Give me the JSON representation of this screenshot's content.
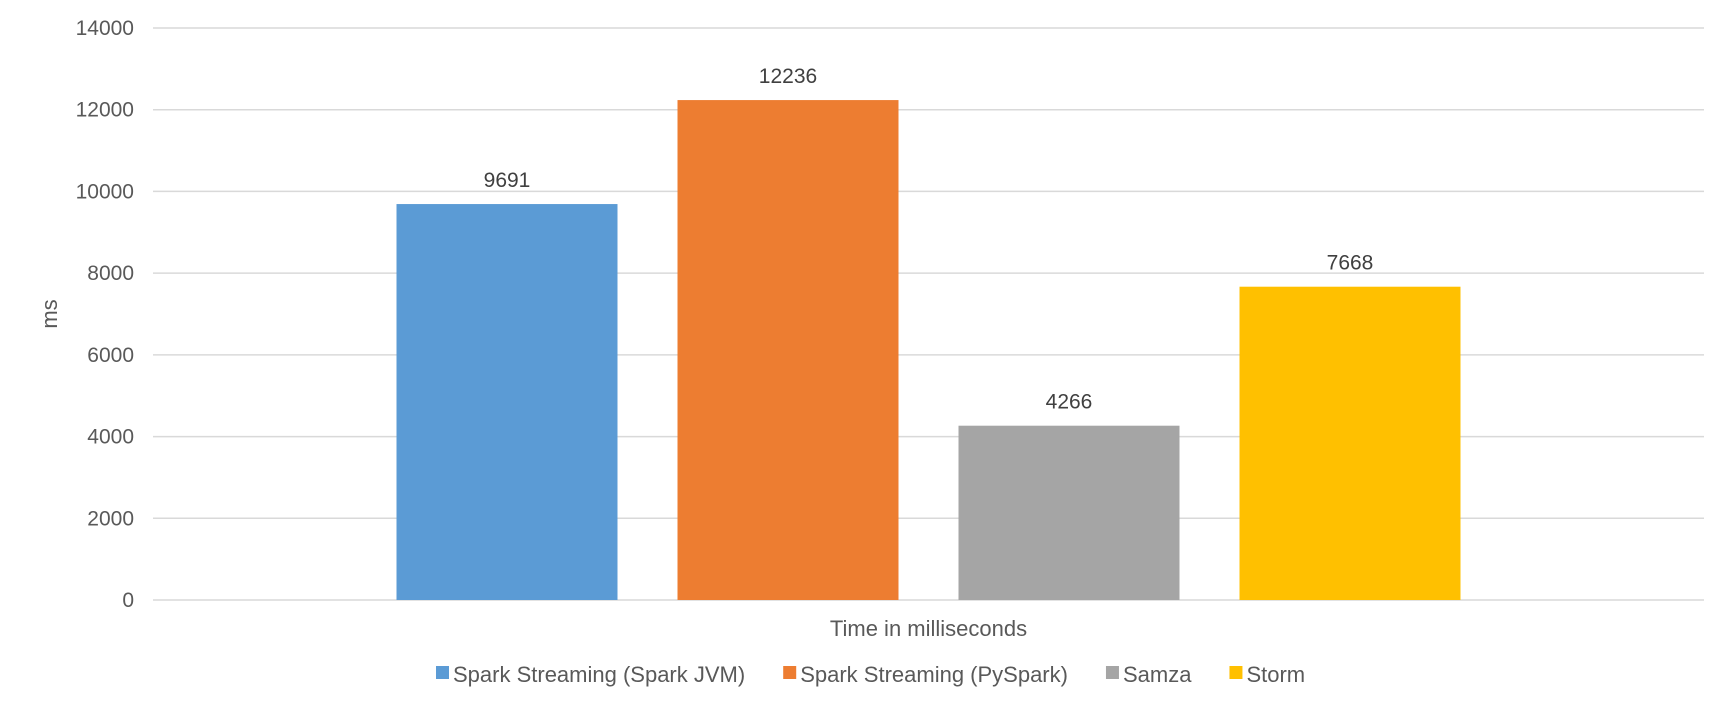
{
  "chart_data": {
    "type": "bar",
    "xlabel": "Time in milliseconds",
    "ylabel": "ms",
    "ylim": [
      0,
      14000
    ],
    "yticks": [
      0,
      2000,
      4000,
      6000,
      8000,
      10000,
      12000,
      14000
    ],
    "grid": true,
    "legend_position": "bottom",
    "categories": [
      "Time in milliseconds"
    ],
    "series": [
      {
        "name": "Spark Streaming (Spark JVM)",
        "values": [
          9691
        ],
        "color": "#5b9bd5"
      },
      {
        "name": "Spark Streaming (PySpark)",
        "values": [
          12236
        ],
        "color": "#ed7d31"
      },
      {
        "name": "Samza",
        "values": [
          4266
        ],
        "color": "#a5a5a5"
      },
      {
        "name": "Storm",
        "values": [
          7668
        ],
        "color": "#ffc000"
      }
    ]
  }
}
